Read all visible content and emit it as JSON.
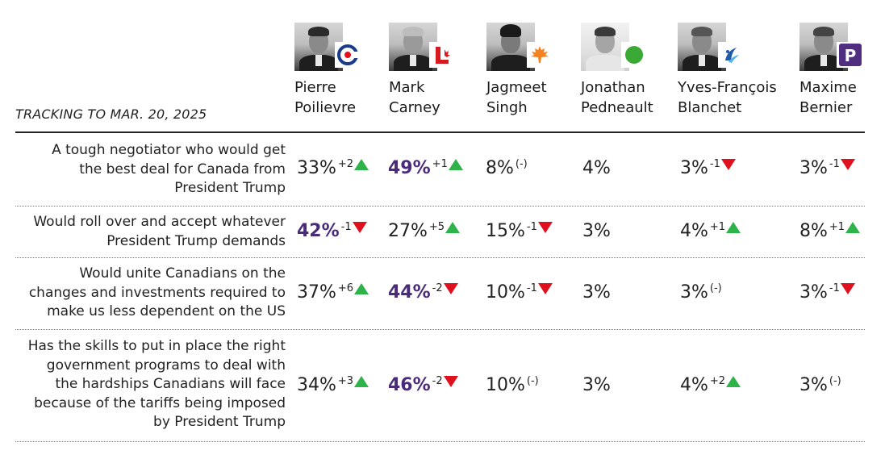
{
  "tracking_label": "TRACKING TO MAR. 20, 2025",
  "colors": {
    "up": "#2eb34a",
    "down": "#e0101e",
    "bold_value": "#4a2b7a"
  },
  "candidates": [
    {
      "first": "Pierre",
      "last": "Poilievre",
      "party_icon": "conservative-logo-icon"
    },
    {
      "first": "Mark",
      "last": "Carney",
      "party_icon": "liberal-logo-icon"
    },
    {
      "first": "Jagmeet",
      "last": "Singh",
      "party_icon": "ndp-logo-icon"
    },
    {
      "first": "Jonathan",
      "last": "Pedneault",
      "party_icon": "green-logo-icon"
    },
    {
      "first": "Yves-François",
      "last": "Blanchet",
      "party_icon": "bloc-logo-icon"
    },
    {
      "first": "Maxime",
      "last": "Bernier",
      "party_icon": "ppc-logo-icon"
    }
  ],
  "chart_data": {
    "type": "table",
    "title": "TRACKING TO MAR. 20, 2025",
    "columns": [
      "Pierre Poilievre",
      "Mark Carney",
      "Jagmeet Singh",
      "Jonathan Pedneault",
      "Yves-François Blanchet",
      "Maxime Bernier"
    ],
    "rows": [
      {
        "statement_lines": [
          "A tough negotiator who would get",
          "the best deal for Canada from",
          "President Trump"
        ],
        "cells": [
          {
            "value": "33%",
            "change": "+2",
            "dir": "up",
            "bold": false
          },
          {
            "value": "49%",
            "change": "+1",
            "dir": "up",
            "bold": true
          },
          {
            "value": "8%",
            "change": "(-)",
            "dir": "none",
            "bold": false
          },
          {
            "value": "4%",
            "change": "",
            "dir": "none",
            "bold": false
          },
          {
            "value": "3%",
            "change": "-1",
            "dir": "down",
            "bold": false
          },
          {
            "value": "3%",
            "change": "-1",
            "dir": "down",
            "bold": false
          }
        ]
      },
      {
        "statement_lines": [
          "Would roll over and accept whatever",
          "President Trump demands"
        ],
        "cells": [
          {
            "value": "42%",
            "change": "-1",
            "dir": "down",
            "bold": true
          },
          {
            "value": "27%",
            "change": "+5",
            "dir": "up",
            "bold": false
          },
          {
            "value": "15%",
            "change": "-1",
            "dir": "down",
            "bold": false
          },
          {
            "value": "3%",
            "change": "",
            "dir": "none",
            "bold": false
          },
          {
            "value": "4%",
            "change": "+1",
            "dir": "up",
            "bold": false
          },
          {
            "value": "8%",
            "change": "+1",
            "dir": "up",
            "bold": false
          }
        ]
      },
      {
        "statement_lines": [
          "Would unite Canadians on the",
          "changes and investments required to",
          "make us less dependent on the US"
        ],
        "cells": [
          {
            "value": "37%",
            "change": "+6",
            "dir": "up",
            "bold": false
          },
          {
            "value": "44%",
            "change": "-2",
            "dir": "down",
            "bold": true
          },
          {
            "value": "10%",
            "change": "-1",
            "dir": "down",
            "bold": false
          },
          {
            "value": "3%",
            "change": "",
            "dir": "none",
            "bold": false
          },
          {
            "value": "3%",
            "change": "(-)",
            "dir": "none",
            "bold": false
          },
          {
            "value": "3%",
            "change": "-1",
            "dir": "down",
            "bold": false
          }
        ]
      },
      {
        "statement_lines": [
          "Has the skills to put in place the right",
          "government programs to deal with",
          "the hardships Canadians will face",
          "because of the tariffs being imposed",
          "by President Trump"
        ],
        "cells": [
          {
            "value": "34%",
            "change": "+3",
            "dir": "up",
            "bold": false
          },
          {
            "value": "46%",
            "change": "-2",
            "dir": "down",
            "bold": true
          },
          {
            "value": "10%",
            "change": "(-)",
            "dir": "none",
            "bold": false
          },
          {
            "value": "3%",
            "change": "",
            "dir": "none",
            "bold": false
          },
          {
            "value": "4%",
            "change": "+2",
            "dir": "up",
            "bold": false
          },
          {
            "value": "3%",
            "change": "(-)",
            "dir": "none",
            "bold": false
          }
        ]
      }
    ]
  }
}
